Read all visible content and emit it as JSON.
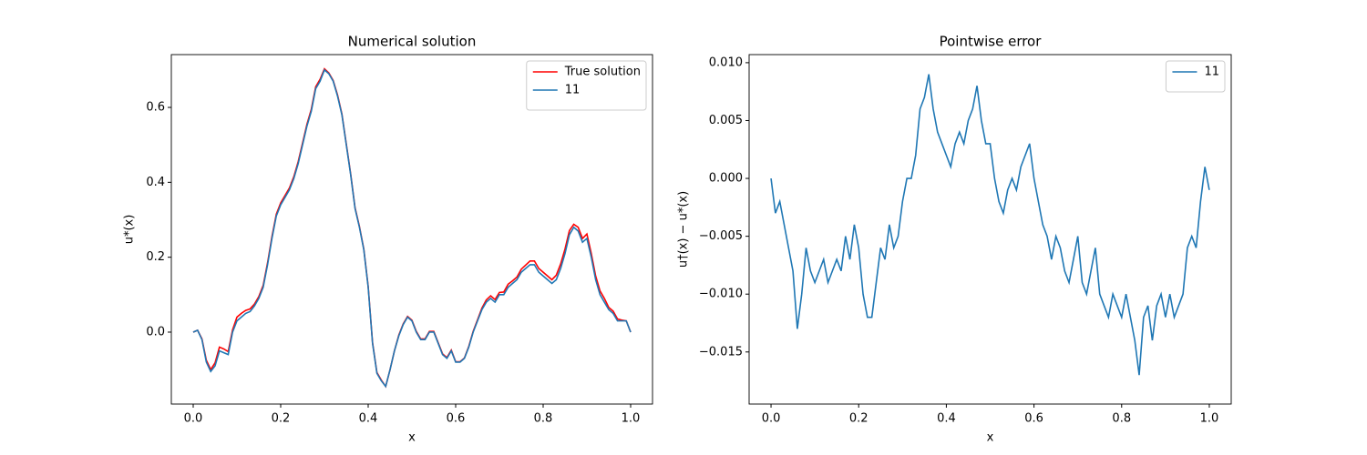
{
  "chart_data": [
    {
      "type": "line",
      "title": "Numerical solution",
      "xlabel": "x",
      "ylabel": "u*(x)",
      "x": [
        0,
        0.01,
        0.02,
        0.03,
        0.04,
        0.05,
        0.06,
        0.07,
        0.08,
        0.09,
        0.1,
        0.11,
        0.12,
        0.13,
        0.14,
        0.15,
        0.16,
        0.17,
        0.18,
        0.19,
        0.2,
        0.21,
        0.22,
        0.23,
        0.24,
        0.25,
        0.26,
        0.27,
        0.28,
        0.29,
        0.3,
        0.31,
        0.32,
        0.33,
        0.34,
        0.35,
        0.36,
        0.37,
        0.38,
        0.39,
        0.4,
        0.41,
        0.42,
        0.43,
        0.44,
        0.45,
        0.46,
        0.47,
        0.48,
        0.49,
        0.5,
        0.51,
        0.52,
        0.53,
        0.54,
        0.55,
        0.56,
        0.57,
        0.58,
        0.59,
        0.6,
        0.61,
        0.62,
        0.63,
        0.64,
        0.65,
        0.66,
        0.67,
        0.68,
        0.69,
        0.7,
        0.71,
        0.72,
        0.73,
        0.74,
        0.75,
        0.76,
        0.77,
        0.78,
        0.79,
        0.8,
        0.81,
        0.82,
        0.83,
        0.84,
        0.85,
        0.86,
        0.87,
        0.88,
        0.89,
        0.9,
        0.91,
        0.92,
        0.93,
        0.94,
        0.95,
        0.96,
        0.97,
        0.98,
        0.99,
        1.0
      ],
      "series": [
        {
          "name": "True solution",
          "color": "#ff0000",
          "values": [
            0.0,
            0.005,
            -0.018,
            -0.075,
            -0.1,
            -0.082,
            -0.04,
            -0.045,
            -0.052,
            0.006,
            0.04,
            0.05,
            0.058,
            0.062,
            0.075,
            0.095,
            0.125,
            0.185,
            0.255,
            0.315,
            0.345,
            0.365,
            0.385,
            0.415,
            0.455,
            0.505,
            0.555,
            0.595,
            0.655,
            0.675,
            0.703,
            0.692,
            0.672,
            0.633,
            0.582,
            0.502,
            0.422,
            0.332,
            0.282,
            0.222,
            0.122,
            -0.028,
            -0.108,
            -0.128,
            -0.145,
            -0.1,
            -0.05,
            -0.008,
            0.022,
            0.042,
            0.032,
            0.002,
            -0.018,
            -0.018,
            0.002,
            0.002,
            -0.028,
            -0.058,
            -0.068,
            -0.048,
            -0.079,
            -0.079,
            -0.069,
            -0.038,
            0.002,
            0.033,
            0.064,
            0.086,
            0.097,
            0.087,
            0.106,
            0.107,
            0.128,
            0.137,
            0.147,
            0.168,
            0.179,
            0.19,
            0.19,
            0.17,
            0.16,
            0.15,
            0.14,
            0.152,
            0.182,
            0.222,
            0.271,
            0.288,
            0.28,
            0.25,
            0.262,
            0.21,
            0.15,
            0.11,
            0.09,
            0.066,
            0.056,
            0.035,
            0.032,
            0.03,
            0.0
          ]
        },
        {
          "name": "11",
          "color": "#1f77b4",
          "values": [
            0.0,
            0.005,
            -0.02,
            -0.08,
            -0.105,
            -0.09,
            -0.05,
            -0.055,
            -0.06,
            0.0,
            0.03,
            0.04,
            0.05,
            0.055,
            0.07,
            0.09,
            0.12,
            0.18,
            0.25,
            0.31,
            0.34,
            0.36,
            0.38,
            0.41,
            0.45,
            0.5,
            0.55,
            0.59,
            0.65,
            0.67,
            0.7,
            0.69,
            0.67,
            0.63,
            0.58,
            0.5,
            0.42,
            0.33,
            0.28,
            0.22,
            0.12,
            -0.03,
            -0.11,
            -0.13,
            -0.145,
            -0.1,
            -0.05,
            -0.01,
            0.02,
            0.04,
            0.03,
            0.0,
            -0.02,
            -0.02,
            0.0,
            0.0,
            -0.03,
            -0.06,
            -0.07,
            -0.05,
            -0.08,
            -0.08,
            -0.07,
            -0.04,
            0.0,
            0.03,
            0.06,
            0.08,
            0.09,
            0.08,
            0.1,
            0.1,
            0.12,
            0.13,
            0.14,
            0.16,
            0.17,
            0.18,
            0.18,
            0.16,
            0.15,
            0.14,
            0.13,
            0.14,
            0.17,
            0.21,
            0.26,
            0.28,
            0.27,
            0.24,
            0.25,
            0.2,
            0.14,
            0.1,
            0.08,
            0.06,
            0.05,
            0.03,
            0.03,
            0.03,
            0.0
          ]
        }
      ],
      "xlim": [
        -0.05,
        1.05
      ],
      "ylim": [
        -0.192,
        0.741
      ],
      "xticks": [
        {
          "value": 0,
          "label": "0.0"
        },
        0.2,
        0.4,
        0.6,
        0.8,
        {
          "value": 1,
          "label": "1.0"
        }
      ],
      "yticks": [
        {
          "value": 0,
          "label": "0.0"
        },
        0.2,
        0.4,
        0.6
      ],
      "legend": "upper right"
    },
    {
      "type": "line",
      "title": "Pointwise error",
      "xlabel": "x",
      "ylabel": "u†(x) − u*(x)",
      "x": [
        0,
        0.01,
        0.02,
        0.03,
        0.04,
        0.05,
        0.06,
        0.07,
        0.08,
        0.09,
        0.1,
        0.11,
        0.12,
        0.13,
        0.14,
        0.15,
        0.16,
        0.17,
        0.18,
        0.19,
        0.2,
        0.21,
        0.22,
        0.23,
        0.24,
        0.25,
        0.26,
        0.27,
        0.28,
        0.29,
        0.3,
        0.31,
        0.32,
        0.33,
        0.34,
        0.35,
        0.36,
        0.37,
        0.38,
        0.39,
        0.4,
        0.41,
        0.42,
        0.43,
        0.44,
        0.45,
        0.46,
        0.47,
        0.48,
        0.49,
        0.5,
        0.51,
        0.52,
        0.53,
        0.54,
        0.55,
        0.56,
        0.57,
        0.58,
        0.59,
        0.6,
        0.61,
        0.62,
        0.63,
        0.64,
        0.65,
        0.66,
        0.67,
        0.68,
        0.69,
        0.7,
        0.71,
        0.72,
        0.73,
        0.74,
        0.75,
        0.76,
        0.77,
        0.78,
        0.79,
        0.8,
        0.81,
        0.82,
        0.83,
        0.84,
        0.85,
        0.86,
        0.87,
        0.88,
        0.89,
        0.9,
        0.91,
        0.92,
        0.93,
        0.94,
        0.95,
        0.96,
        0.97,
        0.98,
        0.99,
        1.0
      ],
      "series": [
        {
          "name": "11",
          "color": "#1f77b4",
          "values": [
            0.0,
            -0.003,
            -0.002,
            -0.004,
            -0.006,
            -0.008,
            -0.013,
            -0.01,
            -0.006,
            -0.008,
            -0.009,
            -0.008,
            -0.007,
            -0.009,
            -0.008,
            -0.007,
            -0.008,
            -0.005,
            -0.007,
            -0.004,
            -0.006,
            -0.01,
            -0.012,
            -0.012,
            -0.009,
            -0.006,
            -0.007,
            -0.004,
            -0.006,
            -0.005,
            -0.002,
            0.0,
            0.0,
            0.002,
            0.006,
            0.007,
            0.009,
            0.006,
            0.004,
            0.003,
            0.002,
            0.001,
            0.003,
            0.004,
            0.003,
            0.005,
            0.006,
            0.008,
            0.005,
            0.003,
            0.003,
            0.0,
            -0.002,
            -0.003,
            -0.001,
            0.0,
            -0.001,
            0.001,
            0.002,
            0.003,
            0.0,
            -0.002,
            -0.004,
            -0.005,
            -0.007,
            -0.005,
            -0.006,
            -0.008,
            -0.009,
            -0.007,
            -0.005,
            -0.009,
            -0.01,
            -0.008,
            -0.006,
            -0.01,
            -0.011,
            -0.012,
            -0.01,
            -0.011,
            -0.012,
            -0.01,
            -0.012,
            -0.014,
            -0.017,
            -0.012,
            -0.011,
            -0.014,
            -0.011,
            -0.01,
            -0.012,
            -0.01,
            -0.012,
            -0.011,
            -0.01,
            -0.006,
            -0.005,
            -0.006,
            -0.002,
            0.001,
            -0.001
          ]
        }
      ],
      "xlim": [
        -0.05,
        1.05
      ],
      "ylim": [
        -0.0195,
        0.0107
      ],
      "xticks": [
        {
          "value": 0,
          "label": "0.0"
        },
        0.2,
        0.4,
        0.6,
        0.8,
        {
          "value": 1,
          "label": "1.0"
        }
      ],
      "yticks": [
        {
          "value": -0.015,
          "label": "−0.015"
        },
        {
          "value": -0.01,
          "label": "−0.010"
        },
        {
          "value": -0.005,
          "label": "−0.005"
        },
        {
          "value": 0,
          "label": "0.000"
        },
        0.005,
        {
          "value": 0.01,
          "label": "0.010"
        }
      ],
      "legend": "upper right"
    }
  ]
}
